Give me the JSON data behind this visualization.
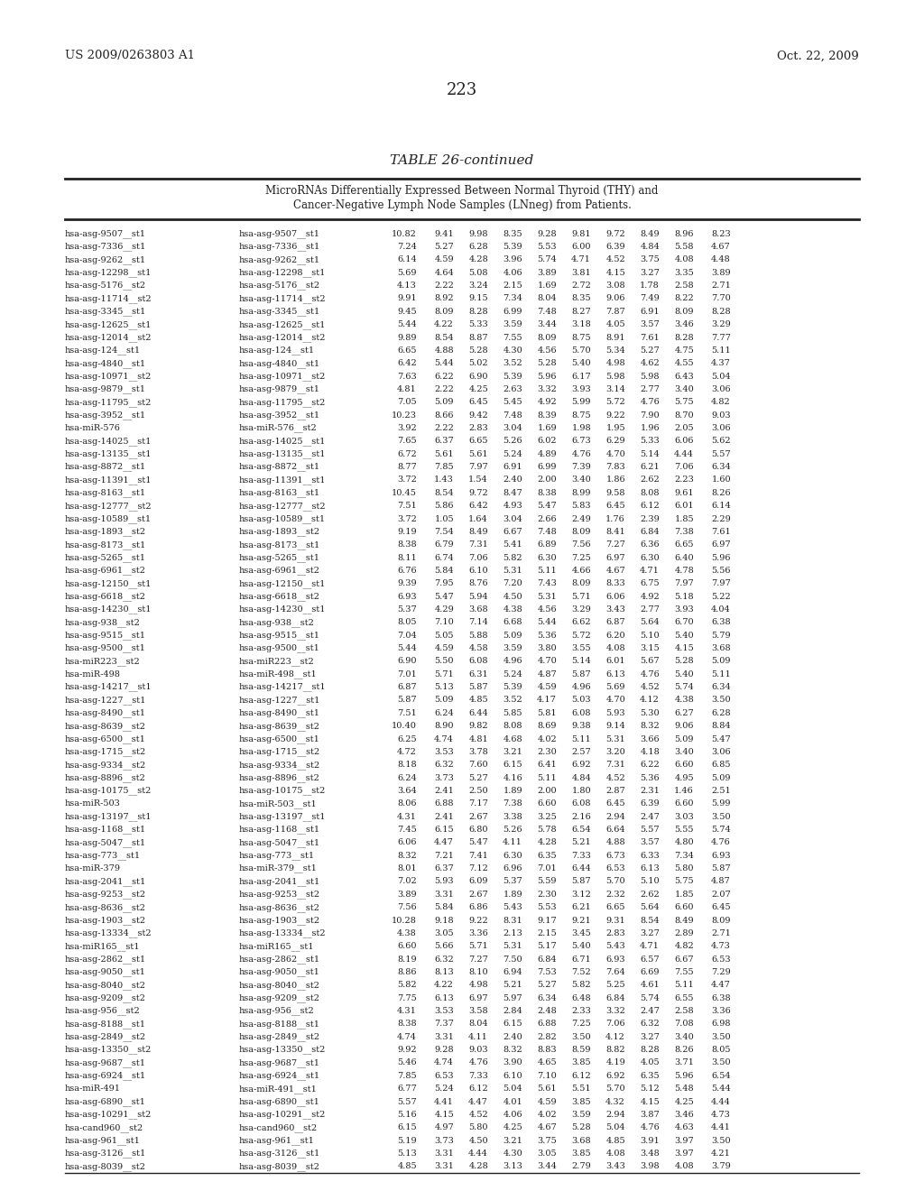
{
  "header_left": "US 2009/0263803 A1",
  "header_right": "Oct. 22, 2009",
  "page_number": "223",
  "table_title": "TABLE 26-continued",
  "table_subtitle1": "MicroRNAs Differentially Expressed Between Normal Thyroid (THY) and",
  "table_subtitle2": "Cancer-Negative Lymph Node Samples (LNneg) from Patients.",
  "rows": [
    [
      "hsa-asg-9507__st1",
      "hsa-asg-9507__st1",
      "10.82",
      "9.41",
      "9.98",
      "8.35",
      "9.28",
      "9.81",
      "9.72",
      "8.49",
      "8.96",
      "8.23"
    ],
    [
      "hsa-asg-7336__st1",
      "hsa-asg-7336__st1",
      "7.24",
      "5.27",
      "6.28",
      "5.39",
      "5.53",
      "6.00",
      "6.39",
      "4.84",
      "5.58",
      "4.67"
    ],
    [
      "hsa-asg-9262__st1",
      "hsa-asg-9262__st1",
      "6.14",
      "4.59",
      "4.28",
      "3.96",
      "5.74",
      "4.71",
      "4.52",
      "3.75",
      "4.08",
      "4.48"
    ],
    [
      "hsa-asg-12298__st1",
      "hsa-asg-12298__st1",
      "5.69",
      "4.64",
      "5.08",
      "4.06",
      "3.89",
      "3.81",
      "4.15",
      "3.27",
      "3.35",
      "3.89"
    ],
    [
      "hsa-asg-5176__st2",
      "hsa-asg-5176__st2",
      "4.13",
      "2.22",
      "3.24",
      "2.15",
      "1.69",
      "2.72",
      "3.08",
      "1.78",
      "2.58",
      "2.71"
    ],
    [
      "hsa-asg-11714__st2",
      "hsa-asg-11714__st2",
      "9.91",
      "8.92",
      "9.15",
      "7.34",
      "8.04",
      "8.35",
      "9.06",
      "7.49",
      "8.22",
      "7.70"
    ],
    [
      "hsa-asg-3345__st1",
      "hsa-asg-3345__st1",
      "9.45",
      "8.09",
      "8.28",
      "6.99",
      "7.48",
      "8.27",
      "7.87",
      "6.91",
      "8.09",
      "8.28"
    ],
    [
      "hsa-asg-12625__st1",
      "hsa-asg-12625__st1",
      "5.44",
      "4.22",
      "5.33",
      "3.59",
      "3.44",
      "3.18",
      "4.05",
      "3.57",
      "3.46",
      "3.29"
    ],
    [
      "hsa-asg-12014__st2",
      "hsa-asg-12014__st2",
      "9.89",
      "8.54",
      "8.87",
      "7.55",
      "8.09",
      "8.75",
      "8.91",
      "7.61",
      "8.28",
      "7.77"
    ],
    [
      "hsa-asg-124__st1",
      "hsa-asg-124__st1",
      "6.65",
      "4.88",
      "5.28",
      "4.30",
      "4.56",
      "5.70",
      "5.34",
      "5.27",
      "4.75",
      "5.11"
    ],
    [
      "hsa-asg-4840__st1",
      "hsa-asg-4840__st1",
      "6.42",
      "5.44",
      "5.02",
      "3.52",
      "5.28",
      "5.40",
      "4.98",
      "4.62",
      "4.55",
      "4.37"
    ],
    [
      "hsa-asg-10971__st2",
      "hsa-asg-10971__st2",
      "7.63",
      "6.22",
      "6.90",
      "5.39",
      "5.96",
      "6.17",
      "5.98",
      "5.98",
      "6.43",
      "5.04"
    ],
    [
      "hsa-asg-9879__st1",
      "hsa-asg-9879__st1",
      "4.81",
      "2.22",
      "4.25",
      "2.63",
      "3.32",
      "3.93",
      "3.14",
      "2.77",
      "3.40",
      "3.06"
    ],
    [
      "hsa-asg-11795__st2",
      "hsa-asg-11795__st2",
      "7.05",
      "5.09",
      "6.45",
      "5.45",
      "4.92",
      "5.99",
      "5.72",
      "4.76",
      "5.75",
      "4.82"
    ],
    [
      "hsa-asg-3952__st1",
      "hsa-asg-3952__st1",
      "10.23",
      "8.66",
      "9.42",
      "7.48",
      "8.39",
      "8.75",
      "9.22",
      "7.90",
      "8.70",
      "9.03"
    ],
    [
      "hsa-miR-576",
      "hsa-miR-576__st2",
      "3.92",
      "2.22",
      "2.83",
      "3.04",
      "1.69",
      "1.98",
      "1.95",
      "1.96",
      "2.05",
      "3.06"
    ],
    [
      "hsa-asg-14025__st1",
      "hsa-asg-14025__st1",
      "7.65",
      "6.37",
      "6.65",
      "5.26",
      "6.02",
      "6.73",
      "6.29",
      "5.33",
      "6.06",
      "5.62"
    ],
    [
      "hsa-asg-13135__st1",
      "hsa-asg-13135__st1",
      "6.72",
      "5.61",
      "5.61",
      "5.24",
      "4.89",
      "4.76",
      "4.70",
      "5.14",
      "4.44",
      "5.57"
    ],
    [
      "hsa-asg-8872__st1",
      "hsa-asg-8872__st1",
      "8.77",
      "7.85",
      "7.97",
      "6.91",
      "6.99",
      "7.39",
      "7.83",
      "6.21",
      "7.06",
      "6.34"
    ],
    [
      "hsa-asg-11391__st1",
      "hsa-asg-11391__st1",
      "3.72",
      "1.43",
      "1.54",
      "2.40",
      "2.00",
      "3.40",
      "1.86",
      "2.62",
      "2.23",
      "1.60"
    ],
    [
      "hsa-asg-8163__st1",
      "hsa-asg-8163__st1",
      "10.45",
      "8.54",
      "9.72",
      "8.47",
      "8.38",
      "8.99",
      "9.58",
      "8.08",
      "9.61",
      "8.26"
    ],
    [
      "hsa-asg-12777__st2",
      "hsa-asg-12777__st2",
      "7.51",
      "5.86",
      "6.42",
      "4.93",
      "5.47",
      "5.83",
      "6.45",
      "6.12",
      "6.01",
      "6.14"
    ],
    [
      "hsa-asg-10589__st1",
      "hsa-asg-10589__st1",
      "3.72",
      "1.05",
      "1.64",
      "3.04",
      "2.66",
      "2.49",
      "1.76",
      "2.39",
      "1.85",
      "2.29"
    ],
    [
      "hsa-asg-1893__st2",
      "hsa-asg-1893__st2",
      "9.19",
      "7.54",
      "8.49",
      "6.67",
      "7.48",
      "8.09",
      "8.41",
      "6.84",
      "7.38",
      "7.61"
    ],
    [
      "hsa-asg-8173__st1",
      "hsa-asg-8173__st1",
      "8.38",
      "6.79",
      "7.31",
      "5.41",
      "6.89",
      "7.56",
      "7.27",
      "6.36",
      "6.65",
      "6.97"
    ],
    [
      "hsa-asg-5265__st1",
      "hsa-asg-5265__st1",
      "8.11",
      "6.74",
      "7.06",
      "5.82",
      "6.30",
      "7.25",
      "6.97",
      "6.30",
      "6.40",
      "5.96"
    ],
    [
      "hsa-asg-6961__st2",
      "hsa-asg-6961__st2",
      "6.76",
      "5.84",
      "6.10",
      "5.31",
      "5.11",
      "4.66",
      "4.67",
      "4.71",
      "4.78",
      "5.56"
    ],
    [
      "hsa-asg-12150__st1",
      "hsa-asg-12150__st1",
      "9.39",
      "7.95",
      "8.76",
      "7.20",
      "7.43",
      "8.09",
      "8.33",
      "6.75",
      "7.97",
      "7.97"
    ],
    [
      "hsa-asg-6618__st2",
      "hsa-asg-6618__st2",
      "6.93",
      "5.47",
      "5.94",
      "4.50",
      "5.31",
      "5.71",
      "6.06",
      "4.92",
      "5.18",
      "5.22"
    ],
    [
      "hsa-asg-14230__st1",
      "hsa-asg-14230__st1",
      "5.37",
      "4.29",
      "3.68",
      "4.38",
      "4.56",
      "3.29",
      "3.43",
      "2.77",
      "3.93",
      "4.04"
    ],
    [
      "hsa-asg-938__st2",
      "hsa-asg-938__st2",
      "8.05",
      "7.10",
      "7.14",
      "6.68",
      "5.44",
      "6.62",
      "6.87",
      "5.64",
      "6.70",
      "6.38"
    ],
    [
      "hsa-asg-9515__st1",
      "hsa-asg-9515__st1",
      "7.04",
      "5.05",
      "5.88",
      "5.09",
      "5.36",
      "5.72",
      "6.20",
      "5.10",
      "5.40",
      "5.79"
    ],
    [
      "hsa-asg-9500__st1",
      "hsa-asg-9500__st1",
      "5.44",
      "4.59",
      "4.58",
      "3.59",
      "3.80",
      "3.55",
      "4.08",
      "3.15",
      "4.15",
      "3.68"
    ],
    [
      "hsa-miR223__st2",
      "hsa-miR223__st2",
      "6.90",
      "5.50",
      "6.08",
      "4.96",
      "4.70",
      "5.14",
      "6.01",
      "5.67",
      "5.28",
      "5.09"
    ],
    [
      "hsa-miR-498",
      "hsa-miR-498__st1",
      "7.01",
      "5.71",
      "6.31",
      "5.24",
      "4.87",
      "5.87",
      "6.13",
      "4.76",
      "5.40",
      "5.11"
    ],
    [
      "hsa-asg-14217__st1",
      "hsa-asg-14217__st1",
      "6.87",
      "5.13",
      "5.87",
      "5.39",
      "4.59",
      "4.96",
      "5.69",
      "4.52",
      "5.74",
      "6.34"
    ],
    [
      "hsa-asg-1227__st1",
      "hsa-asg-1227__st1",
      "5.87",
      "5.09",
      "4.85",
      "3.52",
      "4.17",
      "5.03",
      "4.70",
      "4.12",
      "4.38",
      "3.50"
    ],
    [
      "hsa-asg-8490__st1",
      "hsa-asg-8490__st1",
      "7.51",
      "6.24",
      "6.44",
      "5.85",
      "5.81",
      "6.08",
      "5.93",
      "5.30",
      "6.27",
      "6.28"
    ],
    [
      "hsa-asg-8639__st2",
      "hsa-asg-8639__st2",
      "10.40",
      "8.90",
      "9.82",
      "8.08",
      "8.69",
      "9.38",
      "9.14",
      "8.32",
      "9.06",
      "8.84"
    ],
    [
      "hsa-asg-6500__st1",
      "hsa-asg-6500__st1",
      "6.25",
      "4.74",
      "4.81",
      "4.68",
      "4.02",
      "5.11",
      "5.31",
      "3.66",
      "5.09",
      "5.47"
    ],
    [
      "hsa-asg-1715__st2",
      "hsa-asg-1715__st2",
      "4.72",
      "3.53",
      "3.78",
      "3.21",
      "2.30",
      "2.57",
      "3.20",
      "4.18",
      "3.40",
      "3.06"
    ],
    [
      "hsa-asg-9334__st2",
      "hsa-asg-9334__st2",
      "8.18",
      "6.32",
      "7.60",
      "6.15",
      "6.41",
      "6.92",
      "7.31",
      "6.22",
      "6.60",
      "6.85"
    ],
    [
      "hsa-asg-8896__st2",
      "hsa-asg-8896__st2",
      "6.24",
      "3.73",
      "5.27",
      "4.16",
      "5.11",
      "4.84",
      "4.52",
      "5.36",
      "4.95",
      "5.09"
    ],
    [
      "hsa-asg-10175__st2",
      "hsa-asg-10175__st2",
      "3.64",
      "2.41",
      "2.50",
      "1.89",
      "2.00",
      "1.80",
      "2.87",
      "2.31",
      "1.46",
      "2.51"
    ],
    [
      "hsa-miR-503",
      "hsa-miR-503__st1",
      "8.06",
      "6.88",
      "7.17",
      "7.38",
      "6.60",
      "6.08",
      "6.45",
      "6.39",
      "6.60",
      "5.99"
    ],
    [
      "hsa-asg-13197__st1",
      "hsa-asg-13197__st1",
      "4.31",
      "2.41",
      "2.67",
      "3.38",
      "3.25",
      "2.16",
      "2.94",
      "2.47",
      "3.03",
      "3.50"
    ],
    [
      "hsa-asg-1168__st1",
      "hsa-asg-1168__st1",
      "7.45",
      "6.15",
      "6.80",
      "5.26",
      "5.78",
      "6.54",
      "6.64",
      "5.57",
      "5.55",
      "5.74"
    ],
    [
      "hsa-asg-5047__st1",
      "hsa-asg-5047__st1",
      "6.06",
      "4.47",
      "5.47",
      "4.11",
      "4.28",
      "5.21",
      "4.88",
      "3.57",
      "4.80",
      "4.76"
    ],
    [
      "hsa-asg-773__st1",
      "hsa-asg-773__st1",
      "8.32",
      "7.21",
      "7.41",
      "6.30",
      "6.35",
      "7.33",
      "6.73",
      "6.33",
      "7.34",
      "6.93"
    ],
    [
      "hsa-miR-379",
      "hsa-miR-379__st1",
      "8.01",
      "6.37",
      "7.12",
      "6.96",
      "7.01",
      "6.44",
      "6.53",
      "6.13",
      "5.80",
      "5.87"
    ],
    [
      "hsa-asg-2041__st1",
      "hsa-asg-2041__st1",
      "7.02",
      "5.93",
      "6.09",
      "5.37",
      "5.59",
      "5.87",
      "5.70",
      "5.10",
      "5.75",
      "4.87"
    ],
    [
      "hsa-asg-9253__st2",
      "hsa-asg-9253__st2",
      "3.89",
      "3.31",
      "2.67",
      "1.89",
      "2.30",
      "3.12",
      "2.32",
      "2.62",
      "1.85",
      "2.07"
    ],
    [
      "hsa-asg-8636__st2",
      "hsa-asg-8636__st2",
      "7.56",
      "5.84",
      "6.86",
      "5.43",
      "5.53",
      "6.21",
      "6.65",
      "5.64",
      "6.60",
      "6.45"
    ],
    [
      "hsa-asg-1903__st2",
      "hsa-asg-1903__st2",
      "10.28",
      "9.18",
      "9.22",
      "8.31",
      "9.17",
      "9.21",
      "9.31",
      "8.54",
      "8.49",
      "8.09"
    ],
    [
      "hsa-asg-13334__st2",
      "hsa-asg-13334__st2",
      "4.38",
      "3.05",
      "3.36",
      "2.13",
      "2.15",
      "3.45",
      "2.83",
      "3.27",
      "2.89",
      "2.71"
    ],
    [
      "hsa-miR165__st1",
      "hsa-miR165__st1",
      "6.60",
      "5.66",
      "5.71",
      "5.31",
      "5.17",
      "5.40",
      "5.43",
      "4.71",
      "4.82",
      "4.73"
    ],
    [
      "hsa-asg-2862__st1",
      "hsa-asg-2862__st1",
      "8.19",
      "6.32",
      "7.27",
      "7.50",
      "6.84",
      "6.71",
      "6.93",
      "6.57",
      "6.67",
      "6.53"
    ],
    [
      "hsa-asg-9050__st1",
      "hsa-asg-9050__st1",
      "8.86",
      "8.13",
      "8.10",
      "6.94",
      "7.53",
      "7.52",
      "7.64",
      "6.69",
      "7.55",
      "7.29"
    ],
    [
      "hsa-asg-8040__st2",
      "hsa-asg-8040__st2",
      "5.82",
      "4.22",
      "4.98",
      "5.21",
      "5.27",
      "5.82",
      "5.25",
      "4.61",
      "5.11",
      "4.47"
    ],
    [
      "hsa-asg-9209__st2",
      "hsa-asg-9209__st2",
      "7.75",
      "6.13",
      "6.97",
      "5.97",
      "6.34",
      "6.48",
      "6.84",
      "5.74",
      "6.55",
      "6.38"
    ],
    [
      "hsa-asg-956__st2",
      "hsa-asg-956__st2",
      "4.31",
      "3.53",
      "3.58",
      "2.84",
      "2.48",
      "2.33",
      "3.32",
      "2.47",
      "2.58",
      "3.36"
    ],
    [
      "hsa-asg-8188__st1",
      "hsa-asg-8188__st1",
      "8.38",
      "7.37",
      "8.04",
      "6.15",
      "6.88",
      "7.25",
      "7.06",
      "6.32",
      "7.08",
      "6.98"
    ],
    [
      "hsa-asg-2849__st2",
      "hsa-asg-2849__st2",
      "4.74",
      "3.31",
      "4.11",
      "2.40",
      "2.82",
      "3.50",
      "4.12",
      "3.27",
      "3.40",
      "3.50"
    ],
    [
      "hsa-asg-13350__st2",
      "hsa-asg-13350__st2",
      "9.92",
      "9.28",
      "9.03",
      "8.32",
      "8.83",
      "8.59",
      "8.82",
      "8.28",
      "8.26",
      "8.05"
    ],
    [
      "hsa-asg-9687__st1",
      "hsa-asg-9687__st1",
      "5.46",
      "4.74",
      "4.76",
      "3.90",
      "4.65",
      "3.85",
      "4.19",
      "4.05",
      "3.71",
      "3.50"
    ],
    [
      "hsa-asg-6924__st1",
      "hsa-asg-6924__st1",
      "7.85",
      "6.53",
      "7.33",
      "6.10",
      "7.10",
      "6.12",
      "6.92",
      "6.35",
      "5.96",
      "6.54"
    ],
    [
      "hsa-miR-491",
      "hsa-miR-491__st1",
      "6.77",
      "5.24",
      "6.12",
      "5.04",
      "5.61",
      "5.51",
      "5.70",
      "5.12",
      "5.48",
      "5.44"
    ],
    [
      "hsa-asg-6890__st1",
      "hsa-asg-6890__st1",
      "5.57",
      "4.41",
      "4.47",
      "4.01",
      "4.59",
      "3.85",
      "4.32",
      "4.15",
      "4.25",
      "4.44"
    ],
    [
      "hsa-asg-10291__st2",
      "hsa-asg-10291__st2",
      "5.16",
      "4.15",
      "4.52",
      "4.06",
      "4.02",
      "3.59",
      "2.94",
      "3.87",
      "3.46",
      "4.73"
    ],
    [
      "hsa-cand960__st2",
      "hsa-cand960__st2",
      "6.15",
      "4.97",
      "5.80",
      "4.25",
      "4.67",
      "5.28",
      "5.04",
      "4.76",
      "4.63",
      "4.41"
    ],
    [
      "hsa-asg-961__st1",
      "hsa-asg-961__st1",
      "5.19",
      "3.73",
      "4.50",
      "3.21",
      "3.75",
      "3.68",
      "4.85",
      "3.91",
      "3.97",
      "3.50"
    ],
    [
      "hsa-asg-3126__st1",
      "hsa-asg-3126__st1",
      "5.13",
      "3.31",
      "4.44",
      "4.30",
      "3.05",
      "3.85",
      "4.08",
      "3.48",
      "3.97",
      "4.21"
    ],
    [
      "hsa-asg-8039__st2",
      "hsa-asg-8039__st2",
      "4.85",
      "3.31",
      "4.28",
      "3.13",
      "3.44",
      "2.79",
      "3.43",
      "3.98",
      "4.08",
      "3.79"
    ]
  ]
}
